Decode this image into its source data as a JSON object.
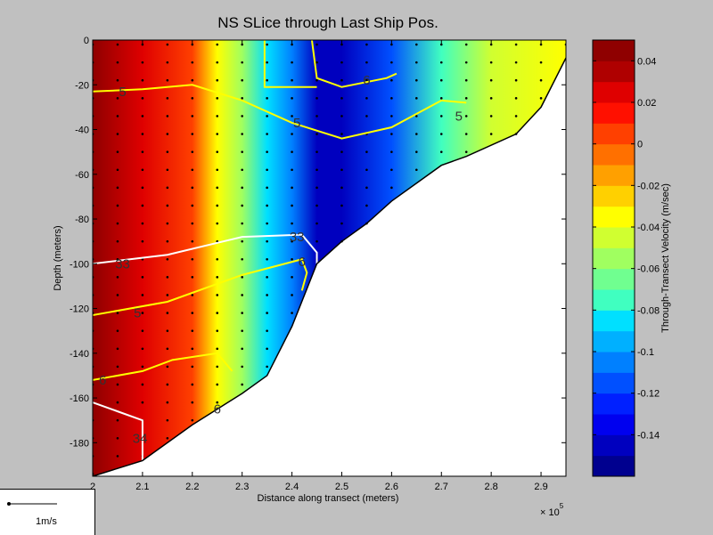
{
  "chart_data": {
    "type": "contour",
    "title": "NS SLice through Last Ship Pos.",
    "xlabel": "Distance along transect (meters)",
    "ylabel": "Depth (meters)",
    "x_exponent_label": "× 10",
    "x_exponent": "5",
    "xlim": [
      2.0,
      2.95
    ],
    "ylim": [
      -195,
      0
    ],
    "x_ticks": [
      {
        "v": 2.0,
        "label": "2"
      },
      {
        "v": 2.1,
        "label": "2.1"
      },
      {
        "v": 2.2,
        "label": "2.2"
      },
      {
        "v": 2.3,
        "label": "2.3"
      },
      {
        "v": 2.4,
        "label": "2.4"
      },
      {
        "v": 2.5,
        "label": "2.5"
      },
      {
        "v": 2.6,
        "label": "2.6"
      },
      {
        "v": 2.7,
        "label": "2.7"
      },
      {
        "v": 2.8,
        "label": "2.8"
      },
      {
        "v": 2.9,
        "label": "2.9"
      }
    ],
    "y_ticks": [
      {
        "v": 0,
        "label": "0"
      },
      {
        "v": -20,
        "label": "-20"
      },
      {
        "v": -40,
        "label": "-40"
      },
      {
        "v": -60,
        "label": "-60"
      },
      {
        "v": -80,
        "label": "-80"
      },
      {
        "v": -100,
        "label": "-100"
      },
      {
        "v": -120,
        "label": "-120"
      },
      {
        "v": -140,
        "label": "-140"
      },
      {
        "v": -160,
        "label": "-160"
      },
      {
        "v": -180,
        "label": "-180"
      }
    ],
    "bottom_profile": [
      [
        2.0,
        -195
      ],
      [
        2.1,
        -188
      ],
      [
        2.2,
        -172
      ],
      [
        2.3,
        -158
      ],
      [
        2.35,
        -150
      ],
      [
        2.4,
        -128
      ],
      [
        2.45,
        -100
      ],
      [
        2.5,
        -90
      ],
      [
        2.55,
        -82
      ],
      [
        2.6,
        -72
      ],
      [
        2.7,
        -56
      ],
      [
        2.75,
        -52
      ],
      [
        2.85,
        -42
      ],
      [
        2.9,
        -30
      ],
      [
        2.95,
        -8
      ]
    ],
    "velocity_field": [
      {
        "x": 2.0,
        "v": 0.04
      },
      {
        "x": 2.1,
        "v": 0.025
      },
      {
        "x": 2.2,
        "v": 0.0
      },
      {
        "x": 2.25,
        "v": -0.03
      },
      {
        "x": 2.3,
        "v": -0.06
      },
      {
        "x": 2.35,
        "v": -0.09
      },
      {
        "x": 2.4,
        "v": -0.11
      },
      {
        "x": 2.45,
        "v": -0.14
      },
      {
        "x": 2.5,
        "v": -0.15
      },
      {
        "x": 2.6,
        "v": -0.12
      },
      {
        "x": 2.7,
        "v": -0.07
      },
      {
        "x": 2.8,
        "v": -0.045
      },
      {
        "x": 2.95,
        "v": -0.035
      }
    ],
    "contours": [
      {
        "color": "#ffff00",
        "label": "5",
        "label_at": [
          2.06,
          -23
        ],
        "points": [
          [
            2.0,
            -23
          ],
          [
            2.1,
            -22
          ],
          [
            2.2,
            -20
          ],
          [
            2.3,
            -27
          ],
          [
            2.4,
            -37
          ],
          [
            2.5,
            -44
          ],
          [
            2.6,
            -39
          ],
          [
            2.7,
            -27
          ],
          [
            2.75,
            -28
          ]
        ]
      },
      {
        "color": "#ffff00",
        "label": "5",
        "label_at": [
          2.735,
          -34
        ],
        "points": []
      },
      {
        "color": "#ffff00",
        "label": "5",
        "label_at": [
          2.41,
          -37
        ],
        "points": []
      },
      {
        "color": "#ffff00",
        "label": "6",
        "label_at": [
          2.55,
          -18
        ],
        "points": [
          [
            2.44,
            0
          ],
          [
            2.45,
            -17
          ],
          [
            2.5,
            -21
          ],
          [
            2.59,
            -17
          ],
          [
            2.61,
            -15
          ]
        ]
      },
      {
        "color": "#ffff00",
        "label": "",
        "label_at": null,
        "points": [
          [
            2.345,
            0
          ],
          [
            2.345,
            -21
          ],
          [
            2.45,
            -21
          ]
        ]
      },
      {
        "color": "#ffffff",
        "label": "33",
        "label_at": [
          2.06,
          -100
        ],
        "points": [
          [
            2.0,
            -100
          ],
          [
            2.15,
            -96
          ],
          [
            2.3,
            -88
          ],
          [
            2.42,
            -87
          ],
          [
            2.45,
            -95
          ],
          [
            2.45,
            -102
          ]
        ]
      },
      {
        "color": "#ffffff",
        "label": "33",
        "label_at": [
          2.41,
          -88
        ],
        "points": []
      },
      {
        "color": "#ffff00",
        "label": "5",
        "label_at": [
          2.09,
          -122
        ],
        "points": [
          [
            2.0,
            -123
          ],
          [
            2.15,
            -117
          ],
          [
            2.3,
            -105
          ],
          [
            2.42,
            -98
          ],
          [
            2.43,
            -104
          ],
          [
            2.42,
            -112
          ]
        ]
      },
      {
        "color": "#ffff00",
        "label": "6",
        "label_at": [
          2.42,
          -99
        ],
        "points": []
      },
      {
        "color": "#ffff00",
        "label": "6",
        "label_at": [
          2.02,
          -152
        ],
        "points": [
          [
            2.0,
            -152
          ],
          [
            2.1,
            -148
          ],
          [
            2.16,
            -143
          ],
          [
            2.25,
            -140
          ],
          [
            2.28,
            -148
          ]
        ]
      },
      {
        "color": "#ffff00",
        "label": "6",
        "label_at": [
          2.25,
          -165
        ],
        "points": []
      },
      {
        "color": "#ffffff",
        "label": "34",
        "label_at": [
          2.095,
          -178
        ],
        "points": [
          [
            2.0,
            -162
          ],
          [
            2.05,
            -166
          ],
          [
            2.1,
            -170
          ],
          [
            2.1,
            -188
          ]
        ]
      }
    ],
    "colorbar": {
      "label": "Through-Transect Velocity (m/sec)",
      "range": [
        -0.16,
        0.05
      ],
      "ticks": [
        {
          "v": 0.04,
          "label": "0.04"
        },
        {
          "v": 0.02,
          "label": "0.02"
        },
        {
          "v": 0.0,
          "label": "0"
        },
        {
          "v": -0.02,
          "label": "-0.02"
        },
        {
          "v": -0.04,
          "label": "-0.04"
        },
        {
          "v": -0.06,
          "label": "-0.06"
        },
        {
          "v": -0.08,
          "label": "-0.08"
        },
        {
          "v": -0.1,
          "label": "-0.1"
        },
        {
          "v": -0.12,
          "label": "-0.12"
        },
        {
          "v": -0.14,
          "label": "-0.14"
        }
      ],
      "colors": [
        "#00008f",
        "#0000bf",
        "#0000ef",
        "#0020ff",
        "#0050ff",
        "#0080ff",
        "#00b0ff",
        "#00e0ff",
        "#40ffc0",
        "#70ff90",
        "#a0ff60",
        "#d0ff30",
        "#ffff00",
        "#ffd000",
        "#ffa000",
        "#ff7000",
        "#ff4000",
        "#ff1000",
        "#df0000",
        "#af0000",
        "#8f0000"
      ]
    },
    "scale_label": "1m/s"
  }
}
